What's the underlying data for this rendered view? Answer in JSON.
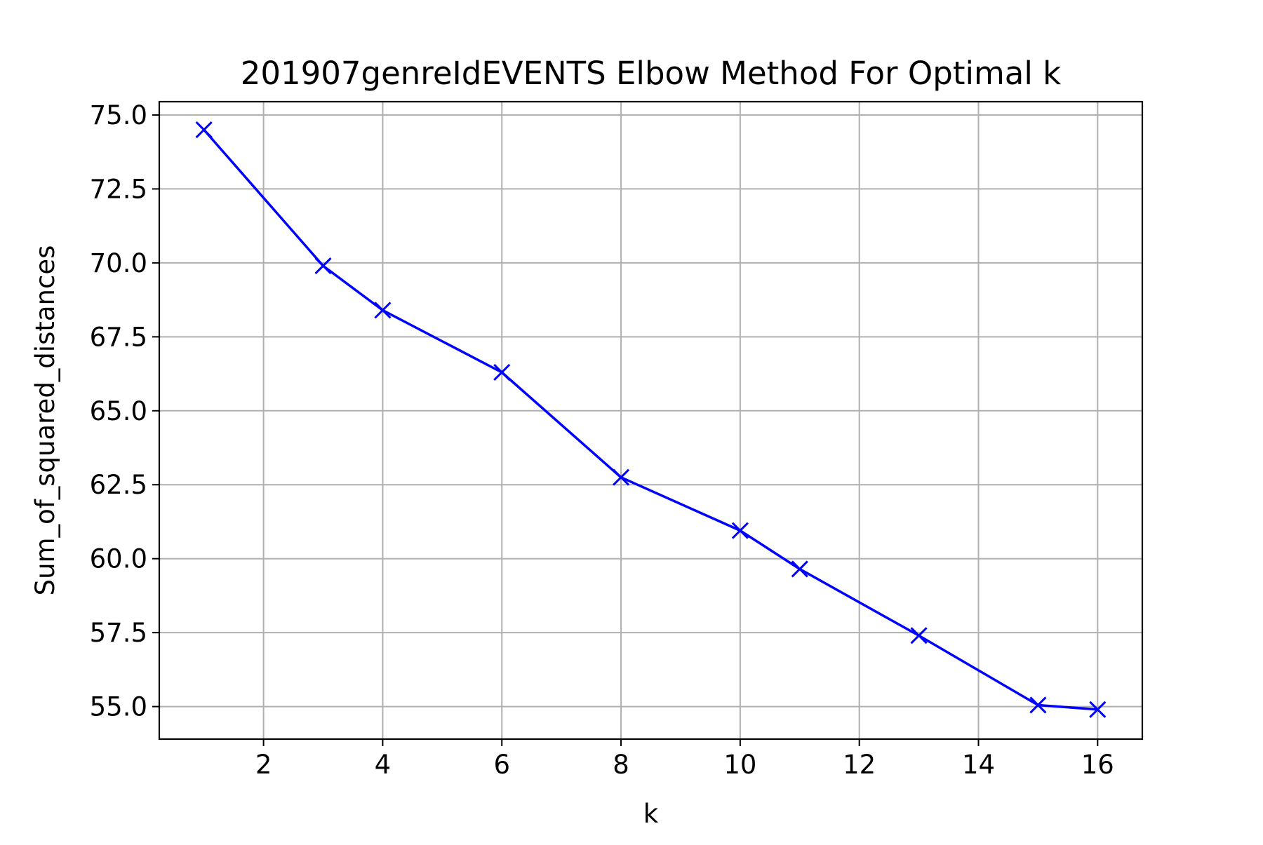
{
  "chart_data": {
    "type": "line",
    "title": "201907genreIdEVENTS Elbow Method For Optimal k",
    "xlabel": "k",
    "ylabel": "Sum_of_squared_distances",
    "xlim": [
      0.25,
      16.75
    ],
    "ylim": [
      53.9,
      75.45
    ],
    "xticks": [
      2,
      4,
      6,
      8,
      10,
      12,
      14,
      16
    ],
    "xtick_labels": [
      "2",
      "4",
      "6",
      "8",
      "10",
      "12",
      "14",
      "16"
    ],
    "yticks": [
      55.0,
      57.5,
      60.0,
      62.5,
      65.0,
      67.5,
      70.0,
      72.5,
      75.0
    ],
    "ytick_labels": [
      "55.0",
      "57.5",
      "60.0",
      "62.5",
      "65.0",
      "67.5",
      "70.0",
      "72.5",
      "75.0"
    ],
    "grid": true,
    "series": [
      {
        "color": "#0000ff",
        "marker": "x",
        "x": [
          1,
          3,
          4,
          6,
          8,
          10,
          11,
          13,
          15,
          16
        ],
        "y": [
          74.5,
          69.9,
          68.4,
          66.3,
          62.75,
          60.95,
          59.65,
          57.4,
          55.05,
          54.9
        ]
      }
    ]
  }
}
